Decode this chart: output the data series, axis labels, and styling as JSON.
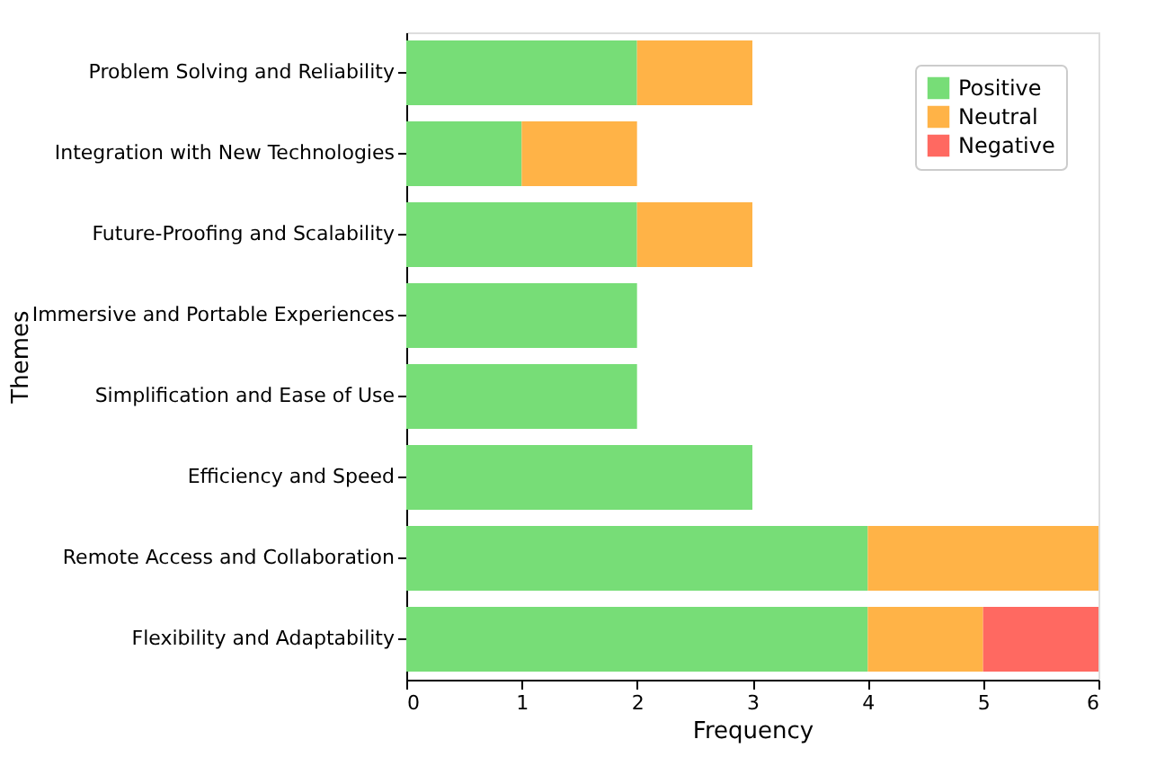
{
  "chart_data": {
    "type": "bar",
    "orientation": "horizontal",
    "stacked": true,
    "xlabel": "Frequency",
    "ylabel": "Themes",
    "categories": [
      "Problem Solving and Reliability",
      "Integration with New Technologies",
      "Future-Proofing and Scalability",
      "Immersive and Portable Experiences",
      "Simplification and Ease of Use",
      "Efficiency and Speed",
      "Remote Access and Collaboration",
      "Flexibility and Adaptability"
    ],
    "series": [
      {
        "name": "Positive",
        "color": "#77dd77",
        "values": [
          2,
          1,
          2,
          2,
          2,
          3,
          4,
          4
        ]
      },
      {
        "name": "Neutral",
        "color": "#ffb347",
        "values": [
          1,
          1,
          1,
          0,
          0,
          0,
          2,
          1
        ]
      },
      {
        "name": "Negative",
        "color": "#ff6961",
        "values": [
          0,
          0,
          0,
          0,
          0,
          0,
          0,
          1
        ]
      }
    ],
    "xlim": [
      0,
      6
    ],
    "xticks": [
      0,
      1,
      2,
      3,
      4,
      5,
      6
    ],
    "grid": false,
    "legend": "top right"
  }
}
